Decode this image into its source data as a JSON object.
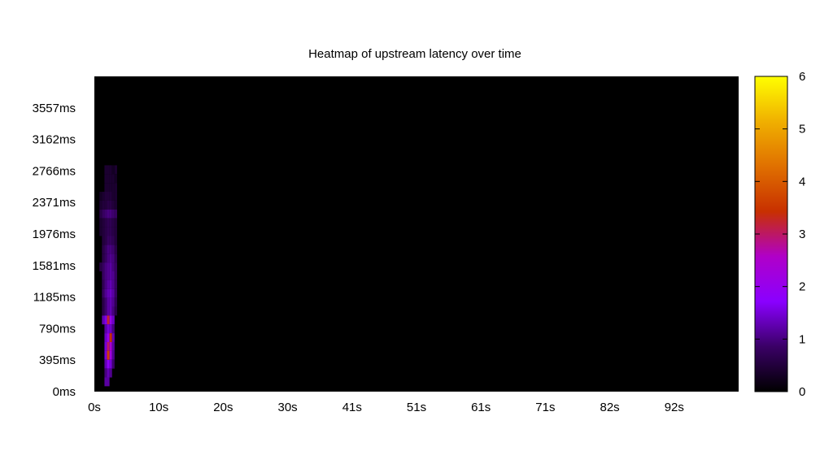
{
  "chart_data": {
    "type": "heatmap",
    "title": "Heatmap of upstream latency over time",
    "xlabel": "",
    "ylabel": "",
    "x_tick_labels": [
      "0s",
      "10s",
      "20s",
      "30s",
      "41s",
      "51s",
      "61s",
      "71s",
      "82s",
      "92s"
    ],
    "y_tick_labels": [
      "0ms",
      "395ms",
      "790ms",
      "1185ms",
      "1581ms",
      "1976ms",
      "2371ms",
      "2766ms",
      "3162ms",
      "3557ms"
    ],
    "xlim": [
      0,
      102
    ],
    "ylim": [
      0,
      3952
    ],
    "colorbar": {
      "min": 0,
      "max": 6,
      "ticks": [
        "0",
        "1",
        "2",
        "3",
        "4",
        "5",
        "6"
      ]
    },
    "colors": {
      "background": "#000000",
      "scale": [
        "#000000",
        "#3a0066",
        "#8a00ff",
        "#b000c8",
        "#c83000",
        "#e07000",
        "#f0b000",
        "#ffff00"
      ]
    },
    "cells": [
      {
        "x": 1.6,
        "y": 2782,
        "v": 0.4
      },
      {
        "x": 2.0,
        "y": 2782,
        "v": 0.4
      },
      {
        "x": 2.4,
        "y": 2782,
        "v": 0.4
      },
      {
        "x": 2.8,
        "y": 2782,
        "v": 0.3
      },
      {
        "x": 3.2,
        "y": 2782,
        "v": 0.4
      },
      {
        "x": 1.6,
        "y": 2671,
        "v": 0.4
      },
      {
        "x": 2.0,
        "y": 2671,
        "v": 0.4
      },
      {
        "x": 2.4,
        "y": 2671,
        "v": 0.4
      },
      {
        "x": 2.8,
        "y": 2671,
        "v": 0.4
      },
      {
        "x": 3.2,
        "y": 2671,
        "v": 0.3
      },
      {
        "x": 1.6,
        "y": 2560,
        "v": 0.4
      },
      {
        "x": 2.0,
        "y": 2560,
        "v": 0.4
      },
      {
        "x": 2.4,
        "y": 2560,
        "v": 0.4
      },
      {
        "x": 2.8,
        "y": 2560,
        "v": 0.4
      },
      {
        "x": 3.2,
        "y": 2560,
        "v": 0.4
      },
      {
        "x": 0.8,
        "y": 2450,
        "v": 0.3
      },
      {
        "x": 1.2,
        "y": 2450,
        "v": 0.4
      },
      {
        "x": 1.6,
        "y": 2450,
        "v": 0.5
      },
      {
        "x": 2.0,
        "y": 2450,
        "v": 0.5
      },
      {
        "x": 2.4,
        "y": 2450,
        "v": 0.5
      },
      {
        "x": 2.8,
        "y": 2450,
        "v": 0.4
      },
      {
        "x": 3.2,
        "y": 2450,
        "v": 0.4
      },
      {
        "x": 0.8,
        "y": 2339,
        "v": 0.4
      },
      {
        "x": 1.2,
        "y": 2339,
        "v": 0.5
      },
      {
        "x": 1.6,
        "y": 2339,
        "v": 0.5
      },
      {
        "x": 2.0,
        "y": 2339,
        "v": 0.6
      },
      {
        "x": 2.4,
        "y": 2339,
        "v": 0.6
      },
      {
        "x": 2.8,
        "y": 2339,
        "v": 0.5
      },
      {
        "x": 3.2,
        "y": 2339,
        "v": 0.4
      },
      {
        "x": 0.8,
        "y": 2228,
        "v": 0.6
      },
      {
        "x": 1.2,
        "y": 2228,
        "v": 0.8
      },
      {
        "x": 1.6,
        "y": 2228,
        "v": 0.9
      },
      {
        "x": 2.0,
        "y": 2228,
        "v": 1.0
      },
      {
        "x": 2.4,
        "y": 2228,
        "v": 1.0
      },
      {
        "x": 2.8,
        "y": 2228,
        "v": 0.9
      },
      {
        "x": 3.2,
        "y": 2228,
        "v": 0.8
      },
      {
        "x": 0.8,
        "y": 2117,
        "v": 0.4
      },
      {
        "x": 1.2,
        "y": 2117,
        "v": 0.5
      },
      {
        "x": 1.6,
        "y": 2117,
        "v": 0.6
      },
      {
        "x": 2.0,
        "y": 2117,
        "v": 0.7
      },
      {
        "x": 2.4,
        "y": 2117,
        "v": 0.7
      },
      {
        "x": 2.8,
        "y": 2117,
        "v": 0.6
      },
      {
        "x": 3.2,
        "y": 2117,
        "v": 0.5
      },
      {
        "x": 0.8,
        "y": 2006,
        "v": 0.4
      },
      {
        "x": 1.2,
        "y": 2006,
        "v": 0.5
      },
      {
        "x": 1.6,
        "y": 2006,
        "v": 0.6
      },
      {
        "x": 2.0,
        "y": 2006,
        "v": 0.7
      },
      {
        "x": 2.4,
        "y": 2006,
        "v": 0.7
      },
      {
        "x": 2.8,
        "y": 2006,
        "v": 0.6
      },
      {
        "x": 3.2,
        "y": 2006,
        "v": 0.5
      },
      {
        "x": 1.2,
        "y": 1896,
        "v": 0.5
      },
      {
        "x": 1.6,
        "y": 1896,
        "v": 0.6
      },
      {
        "x": 2.0,
        "y": 1896,
        "v": 0.8
      },
      {
        "x": 2.4,
        "y": 1896,
        "v": 0.8
      },
      {
        "x": 2.8,
        "y": 1896,
        "v": 0.7
      },
      {
        "x": 3.2,
        "y": 1896,
        "v": 0.5
      },
      {
        "x": 1.2,
        "y": 1785,
        "v": 0.6
      },
      {
        "x": 1.6,
        "y": 1785,
        "v": 0.8
      },
      {
        "x": 2.0,
        "y": 1785,
        "v": 1.0
      },
      {
        "x": 2.4,
        "y": 1785,
        "v": 1.0
      },
      {
        "x": 2.8,
        "y": 1785,
        "v": 0.9
      },
      {
        "x": 3.2,
        "y": 1785,
        "v": 0.6
      },
      {
        "x": 1.2,
        "y": 1674,
        "v": 0.6
      },
      {
        "x": 1.6,
        "y": 1674,
        "v": 0.8
      },
      {
        "x": 2.0,
        "y": 1674,
        "v": 1.0
      },
      {
        "x": 2.4,
        "y": 1674,
        "v": 1.1
      },
      {
        "x": 2.8,
        "y": 1674,
        "v": 1.0
      },
      {
        "x": 3.2,
        "y": 1674,
        "v": 0.7
      },
      {
        "x": 0.8,
        "y": 1563,
        "v": 0.6
      },
      {
        "x": 1.2,
        "y": 1563,
        "v": 0.8
      },
      {
        "x": 1.6,
        "y": 1563,
        "v": 1.0
      },
      {
        "x": 2.0,
        "y": 1563,
        "v": 1.1
      },
      {
        "x": 2.4,
        "y": 1563,
        "v": 1.2
      },
      {
        "x": 2.8,
        "y": 1563,
        "v": 1.0
      },
      {
        "x": 3.2,
        "y": 1563,
        "v": 0.8
      },
      {
        "x": 1.2,
        "y": 1452,
        "v": 0.8
      },
      {
        "x": 1.6,
        "y": 1452,
        "v": 1.0
      },
      {
        "x": 2.0,
        "y": 1452,
        "v": 1.1
      },
      {
        "x": 2.4,
        "y": 1452,
        "v": 1.2
      },
      {
        "x": 2.8,
        "y": 1452,
        "v": 1.1
      },
      {
        "x": 3.2,
        "y": 1452,
        "v": 0.8
      },
      {
        "x": 1.2,
        "y": 1342,
        "v": 0.7
      },
      {
        "x": 1.6,
        "y": 1342,
        "v": 1.0
      },
      {
        "x": 2.0,
        "y": 1342,
        "v": 1.2
      },
      {
        "x": 2.4,
        "y": 1342,
        "v": 1.3
      },
      {
        "x": 2.8,
        "y": 1342,
        "v": 1.1
      },
      {
        "x": 3.2,
        "y": 1342,
        "v": 0.8
      },
      {
        "x": 1.2,
        "y": 1231,
        "v": 0.8
      },
      {
        "x": 1.6,
        "y": 1231,
        "v": 1.1
      },
      {
        "x": 2.0,
        "y": 1231,
        "v": 1.3
      },
      {
        "x": 2.4,
        "y": 1231,
        "v": 1.4
      },
      {
        "x": 2.8,
        "y": 1231,
        "v": 1.2
      },
      {
        "x": 3.2,
        "y": 1231,
        "v": 0.8
      },
      {
        "x": 1.2,
        "y": 1120,
        "v": 0.6
      },
      {
        "x": 1.6,
        "y": 1120,
        "v": 0.9
      },
      {
        "x": 2.0,
        "y": 1120,
        "v": 1.2
      },
      {
        "x": 2.4,
        "y": 1120,
        "v": 1.3
      },
      {
        "x": 2.8,
        "y": 1120,
        "v": 1.1
      },
      {
        "x": 3.2,
        "y": 1120,
        "v": 0.7
      },
      {
        "x": 1.2,
        "y": 1009,
        "v": 0.6
      },
      {
        "x": 1.6,
        "y": 1009,
        "v": 0.9
      },
      {
        "x": 2.0,
        "y": 1009,
        "v": 1.2
      },
      {
        "x": 2.4,
        "y": 1009,
        "v": 1.3
      },
      {
        "x": 2.8,
        "y": 1009,
        "v": 1.0
      },
      {
        "x": 3.2,
        "y": 1009,
        "v": 0.6
      },
      {
        "x": 1.2,
        "y": 898,
        "v": 1.3
      },
      {
        "x": 1.6,
        "y": 898,
        "v": 1.6
      },
      {
        "x": 2.0,
        "y": 898,
        "v": 3.2
      },
      {
        "x": 2.4,
        "y": 898,
        "v": 2.0
      },
      {
        "x": 2.8,
        "y": 898,
        "v": 1.4
      },
      {
        "x": 1.6,
        "y": 788,
        "v": 1.2
      },
      {
        "x": 2.0,
        "y": 788,
        "v": 1.5
      },
      {
        "x": 2.4,
        "y": 788,
        "v": 1.4
      },
      {
        "x": 2.8,
        "y": 788,
        "v": 1.0
      },
      {
        "x": 1.6,
        "y": 677,
        "v": 1.4
      },
      {
        "x": 2.0,
        "y": 677,
        "v": 2.0
      },
      {
        "x": 2.4,
        "y": 677,
        "v": 3.4
      },
      {
        "x": 2.8,
        "y": 677,
        "v": 1.3
      },
      {
        "x": 1.6,
        "y": 566,
        "v": 1.5
      },
      {
        "x": 2.0,
        "y": 566,
        "v": 3.0
      },
      {
        "x": 2.4,
        "y": 566,
        "v": 2.4
      },
      {
        "x": 2.8,
        "y": 566,
        "v": 1.2
      },
      {
        "x": 1.6,
        "y": 455,
        "v": 1.5
      },
      {
        "x": 2.0,
        "y": 455,
        "v": 3.6
      },
      {
        "x": 2.4,
        "y": 455,
        "v": 2.2
      },
      {
        "x": 2.8,
        "y": 455,
        "v": 1.1
      },
      {
        "x": 1.6,
        "y": 344,
        "v": 1.3
      },
      {
        "x": 2.0,
        "y": 344,
        "v": 1.8
      },
      {
        "x": 2.4,
        "y": 344,
        "v": 1.5
      },
      {
        "x": 2.8,
        "y": 344,
        "v": 0.9
      },
      {
        "x": 1.6,
        "y": 233,
        "v": 1.0
      },
      {
        "x": 2.0,
        "y": 233,
        "v": 1.3
      },
      {
        "x": 2.4,
        "y": 233,
        "v": 1.1
      },
      {
        "x": 1.6,
        "y": 123,
        "v": 1.2
      },
      {
        "x": 2.0,
        "y": 123,
        "v": 1.2
      }
    ]
  }
}
